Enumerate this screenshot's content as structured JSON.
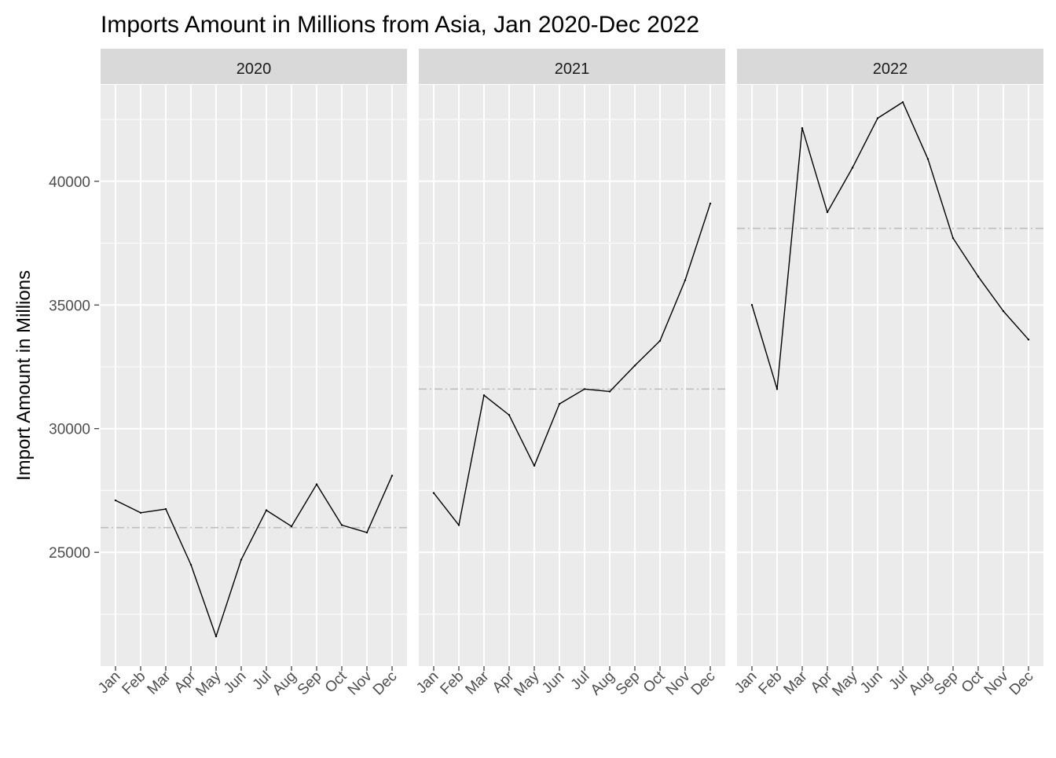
{
  "chart_data": {
    "type": "line",
    "title": "Imports Amount in Millions from Asia, Jan 2020-Dec 2022",
    "xlabel": "",
    "ylabel": "Import Amount in Millions",
    "categories": [
      "Jan",
      "Feb",
      "Mar",
      "Apr",
      "May",
      "Jun",
      "Jul",
      "Aug",
      "Sep",
      "Oct",
      "Nov",
      "Dec"
    ],
    "y_ticks": [
      25000,
      30000,
      35000,
      40000
    ],
    "ylim": [
      20400,
      43900
    ],
    "grid": true,
    "facets": [
      {
        "label": "2020",
        "values": [
          27100,
          26600,
          26750,
          24500,
          21600,
          24700,
          26700,
          26050,
          27750,
          26100,
          25800,
          28100
        ],
        "mean": 26000
      },
      {
        "label": "2021",
        "values": [
          27400,
          26100,
          31350,
          30550,
          28500,
          31000,
          31600,
          31500,
          32550,
          33550,
          36000,
          39100
        ],
        "mean": 31600
      },
      {
        "label": "2022",
        "values": [
          35000,
          31600,
          42150,
          38750,
          40550,
          42550,
          43200,
          40900,
          37700,
          36150,
          34750,
          33600
        ],
        "mean": 38100
      }
    ],
    "colors": {
      "panel_background": "#EBEBEB",
      "strip_background": "#D9D9D9",
      "grid": "#FFFFFF",
      "series_line": "#000000",
      "mean_line": "#BEBEBE",
      "tick_text": "#4D4D4D"
    }
  }
}
